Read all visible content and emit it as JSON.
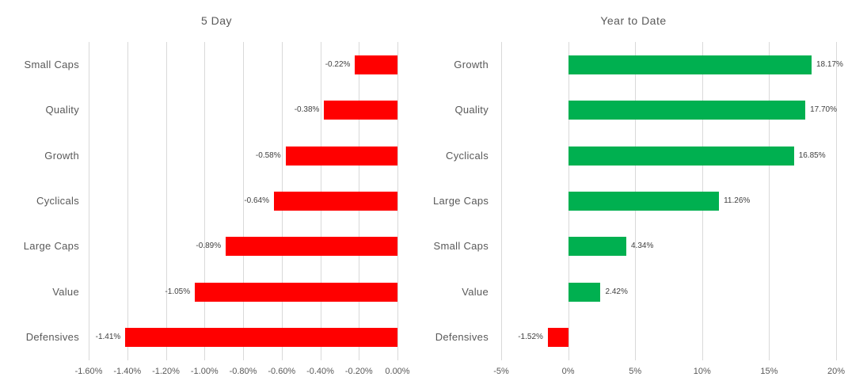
{
  "colors": {
    "positive_bar": "#00B050",
    "negative_bar": "#FF0000",
    "gridline": "#D9D9D9",
    "title_text": "#595959",
    "axis_text": "#595959",
    "data_label_text": "#404040",
    "background": "#FFFFFF"
  },
  "chart_data": [
    {
      "type": "bar",
      "orientation": "horizontal",
      "title": "5 Day",
      "categories": [
        "Small Caps",
        "Quality",
        "Growth",
        "Cyclicals",
        "Large Caps",
        "Value",
        "Defensives"
      ],
      "values": [
        -0.22,
        -0.38,
        -0.58,
        -0.64,
        -0.89,
        -1.05,
        -1.41
      ],
      "data_labels": [
        "-0.22%",
        "-0.38%",
        "-0.58%",
        "-0.64%",
        "-0.89%",
        "-1.05%",
        "-1.41%"
      ],
      "xlim": [
        -1.6,
        0.0
      ],
      "ticks": [
        {
          "value": -1.6,
          "label": "-1.60%"
        },
        {
          "value": -1.4,
          "label": "-1.40%"
        },
        {
          "value": -1.2,
          "label": "-1.20%"
        },
        {
          "value": -1.0,
          "label": "-1.00%"
        },
        {
          "value": -0.8,
          "label": "-0.80%"
        },
        {
          "value": -0.6,
          "label": "-0.60%"
        },
        {
          "value": -0.4,
          "label": "-0.40%"
        },
        {
          "value": -0.2,
          "label": "-0.20%"
        },
        {
          "value": 0.0,
          "label": "0.00%"
        }
      ],
      "grid": true,
      "legend": "none"
    },
    {
      "type": "bar",
      "orientation": "horizontal",
      "title": "Year to Date",
      "categories": [
        "Growth",
        "Quality",
        "Cyclicals",
        "Large Caps",
        "Small Caps",
        "Value",
        "Defensives"
      ],
      "values": [
        18.17,
        17.7,
        16.85,
        11.26,
        4.34,
        2.42,
        -1.52
      ],
      "data_labels": [
        "18.17%",
        "17.70%",
        "16.85%",
        "11.26%",
        "4.34%",
        "2.42%",
        "-1.52%"
      ],
      "xlim": [
        -5,
        20
      ],
      "ticks": [
        {
          "value": -5,
          "label": "-5%"
        },
        {
          "value": 0,
          "label": "0%"
        },
        {
          "value": 5,
          "label": "5%"
        },
        {
          "value": 10,
          "label": "10%"
        },
        {
          "value": 15,
          "label": "15%"
        },
        {
          "value": 20,
          "label": "20%"
        }
      ],
      "grid": true,
      "legend": "none"
    }
  ]
}
